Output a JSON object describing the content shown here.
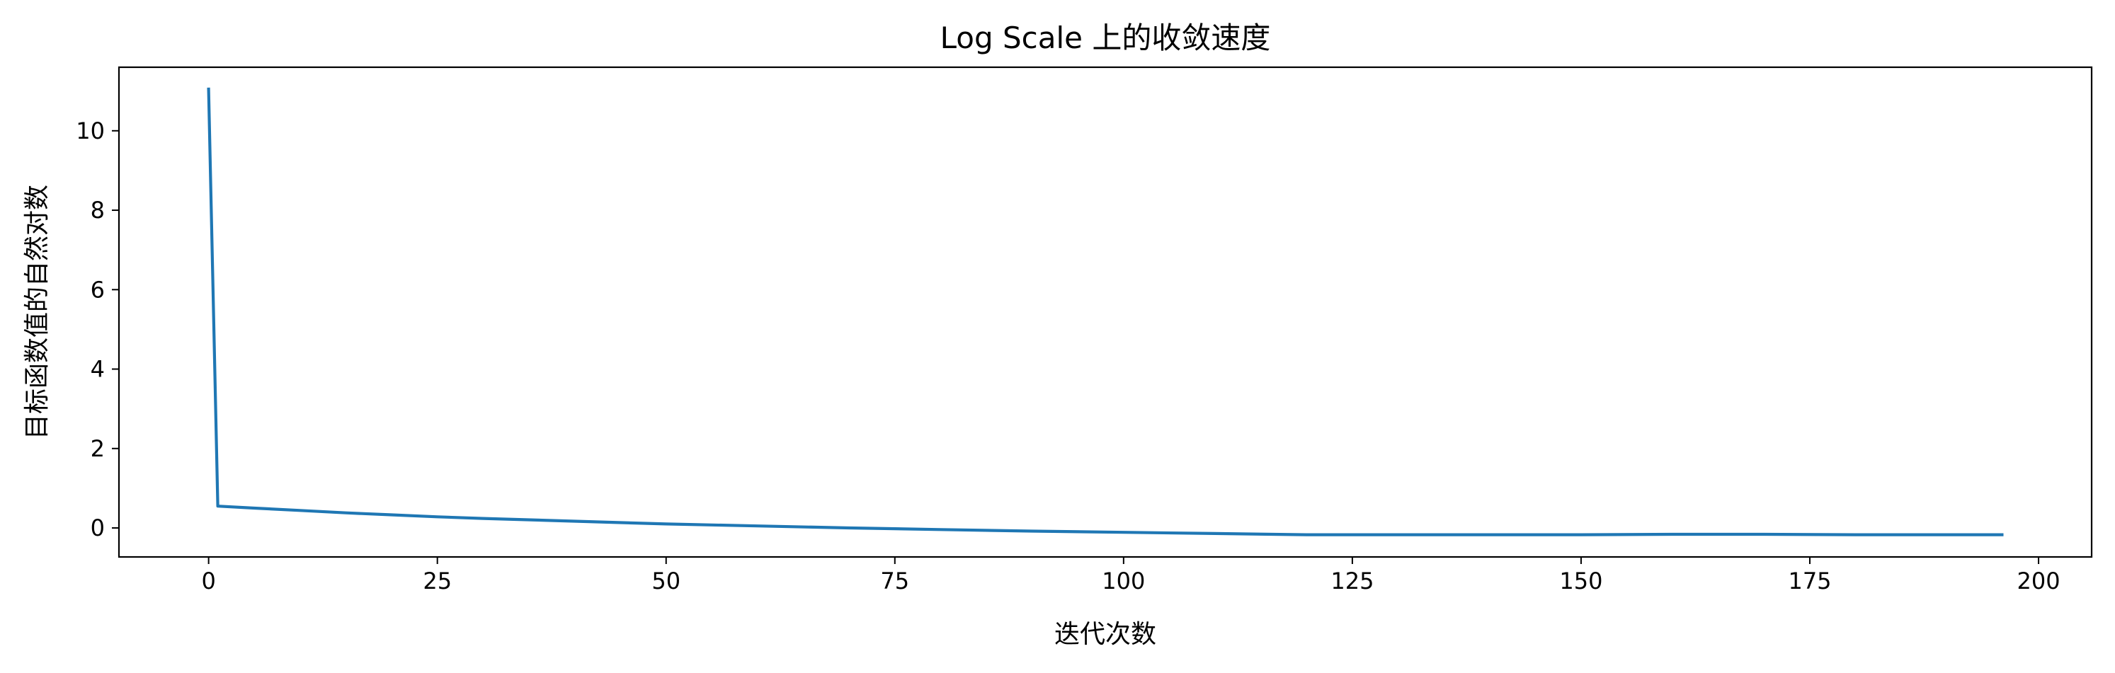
{
  "chart_data": {
    "type": "line",
    "title": "Log Scale 上的收敛速度",
    "xlabel": "迭代次数",
    "ylabel": "目标函数值的自然对数",
    "xlim": [
      -9.8,
      205.8
    ],
    "ylim": [
      -0.73,
      11.6
    ],
    "xticks": [
      0,
      25,
      50,
      75,
      100,
      125,
      150,
      175,
      200
    ],
    "yticks": [
      0,
      2,
      4,
      6,
      8,
      10
    ],
    "grid": false,
    "legend": "none",
    "series": [
      {
        "color": "#1f77b4",
        "x": [
          0,
          1,
          5,
          10,
          15,
          20,
          25,
          30,
          40,
          50,
          60,
          70,
          80,
          90,
          100,
          110,
          120,
          130,
          140,
          150,
          160,
          170,
          180,
          190,
          196
        ],
        "y": [
          11.05,
          0.55,
          0.5,
          0.44,
          0.38,
          0.33,
          0.28,
          0.24,
          0.17,
          0.1,
          0.05,
          0.0,
          -0.04,
          -0.08,
          -0.11,
          -0.14,
          -0.17,
          -0.17,
          -0.17,
          -0.17,
          -0.16,
          -0.16,
          -0.17,
          -0.17,
          -0.17
        ]
      }
    ]
  }
}
